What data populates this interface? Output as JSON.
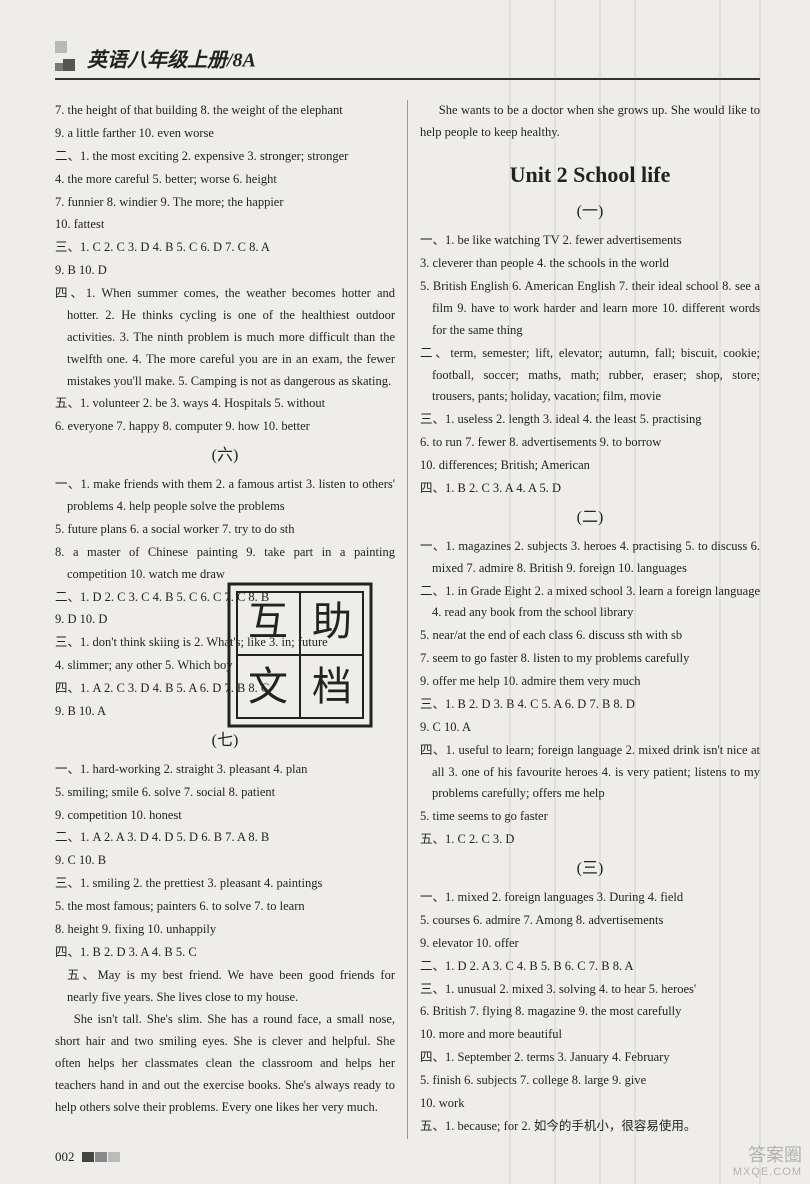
{
  "header": {
    "title": "英语八年级上册/8A"
  },
  "stamp": {
    "char1": "互",
    "char2": "助",
    "char3": "文",
    "char4": "档"
  },
  "left": {
    "l1": "7. the height of that building  8. the weight of the elephant",
    "l2": "9. a little farther  10. even worse",
    "l3": "二、1. the most exciting  2. expensive  3. stronger; stronger",
    "l4": "4. the more careful  5. better; worse  6. height",
    "l5": "7. funnier  8. windier  9. The more; the happier",
    "l6": "10. fattest",
    "l7": "三、1. C  2. C  3. D  4. B  5. C  6. D  7. C  8. A",
    "l8": "9. B  10. D",
    "l9": "四、1. When summer comes, the weather becomes hotter and hotter.  2. He thinks cycling is one of the healthiest outdoor activities.  3. The ninth problem is much more difficult than the twelfth one.  4. The more careful you are in an exam, the fewer mistakes you'll make.  5. Camping is not as dangerous as skating.",
    "l10": "五、1. volunteer  2. be  3. ways  4. Hospitals  5. without",
    "l11": "6. everyone  7. happy  8. computer  9. how  10. better",
    "sec6": "(六)",
    "l12": "一、1. make friends with them  2. a famous artist  3. listen to others' problems  4. help people solve the problems",
    "l13": "5. future plans  6. a social worker  7. try to do sth",
    "l14": "8. a master of Chinese painting  9. take part in a painting competition  10. watch me draw",
    "l15": "二、1. D  2. C  3. C  4. B  5. C  6. C  7. C  8. B",
    "l16": "9. D  10. D",
    "l17": "三、1. don't think skiing is  2. What's; like  3. in; future",
    "l18": "4. slimmer; any other  5. Which boy",
    "l19": "四、1. A  2. C  3. D  4. B  5. A  6. D  7. B  8. C",
    "l20": "9. B  10. A",
    "sec7": "(七)",
    "l21": "一、1. hard-working  2. straight  3. pleasant  4. plan",
    "l22": "5. smiling; smile  6. solve  7. social  8. patient",
    "l23": "9. competition  10. honest",
    "l24": "二、1. A  2. A  3. D  4. D  5. D  6. B  7. A  8. B",
    "l25": "9. C  10. B",
    "l26": "三、1. smiling  2. the prettiest  3. pleasant  4. paintings",
    "l27": "5. the most famous; painters  6. to solve  7. to learn",
    "l28": "8. height  9. fixing  10. unhappily",
    "l29": "四、1. B  2. D  3. A  4. B  5. C",
    "l30": "五、May is my best friend. We have been good friends for nearly five years. She lives close to my house.",
    "l31": "She isn't tall. She's slim. She has a round face, a small nose, short hair and two smiling eyes. She is clever and helpful. She often helps her classmates clean the classroom and helps her teachers hand in and out the exercise books. She's always ready to help others solve their problems. Every one likes her very much."
  },
  "right": {
    "r0": "She wants to be a doctor when she grows up. She would like to help people to keep healthy.",
    "unit": "Unit 2  School life",
    "sec1": "(一)",
    "r1": "一、1. be like watching TV  2. fewer advertisements",
    "r2": "3. cleverer than people  4. the schools in the world",
    "r3": "5. British English  6. American English  7. their ideal school  8. see a film  9. have to work harder and learn more  10. different words for the same thing",
    "r4": "二、term, semester; lift, elevator; autumn, fall; biscuit, cookie; football, soccer; maths, math; rubber, eraser; shop, store; trousers, pants; holiday, vacation; film, movie",
    "r5": "三、1. useless  2. length  3. ideal  4. the least  5. practising",
    "r6": "6. to run  7. fewer  8. advertisements  9. to borrow",
    "r7": "10. differences; British; American",
    "r8": "四、1. B  2. C  3. A  4. A  5. D",
    "sec2": "(二)",
    "r9": "一、1. magazines  2. subjects  3. heroes  4. practising  5. to discuss  6. mixed  7. admire  8. British  9. foreign  10. languages",
    "r10": "二、1. in Grade Eight  2. a mixed school  3. learn a foreign language  4. read any book from the school library",
    "r11": "5. near/at the end of each class  6. discuss sth with sb",
    "r12": "7. seem to go faster  8. listen to my problems carefully",
    "r13": "9. offer me help  10. admire them very much",
    "r14": "三、1. B  2. D  3. B  4. C  5. A  6. D  7. B  8. D",
    "r15": "9. C  10. A",
    "r16": "四、1. useful to learn; foreign language  2. mixed drink isn't nice at all  3. one of his favourite heroes  4. is very patient; listens to my problems carefully; offers me help",
    "r17": "5. time seems to go faster",
    "r18": "五、1. C  2. C  3. D",
    "sec3": "(三)",
    "r19": "一、1. mixed  2. foreign languages  3. During  4. field",
    "r20": "5. courses  6. admire  7. Among  8. advertisements",
    "r21": "9. elevator  10. offer",
    "r22": "二、1. D  2. A  3. C  4. B  5. B  6. C  7. B  8. A",
    "r23": "三、1. unusual  2. mixed  3. solving  4. to hear  5. heroes'",
    "r24": "6. British  7. flying  8. magazine  9. the most carefully",
    "r25": "10. more and more beautiful",
    "r26": "四、1. September  2. terms  3. January  4. February",
    "r27": "5. finish  6. subjects  7. college  8. large  9. give",
    "r28": "10. work",
    "r29": "五、1. because; for  2. 如今的手机小，很容易使用。"
  },
  "footer": {
    "page": "002"
  },
  "watermark_br": {
    "line1": "答案圈",
    "line2": "MXQE.COM"
  },
  "scan": {
    "vlines_x": [
      440,
      510,
      555,
      600,
      635,
      720,
      760
    ],
    "color": "#555"
  }
}
